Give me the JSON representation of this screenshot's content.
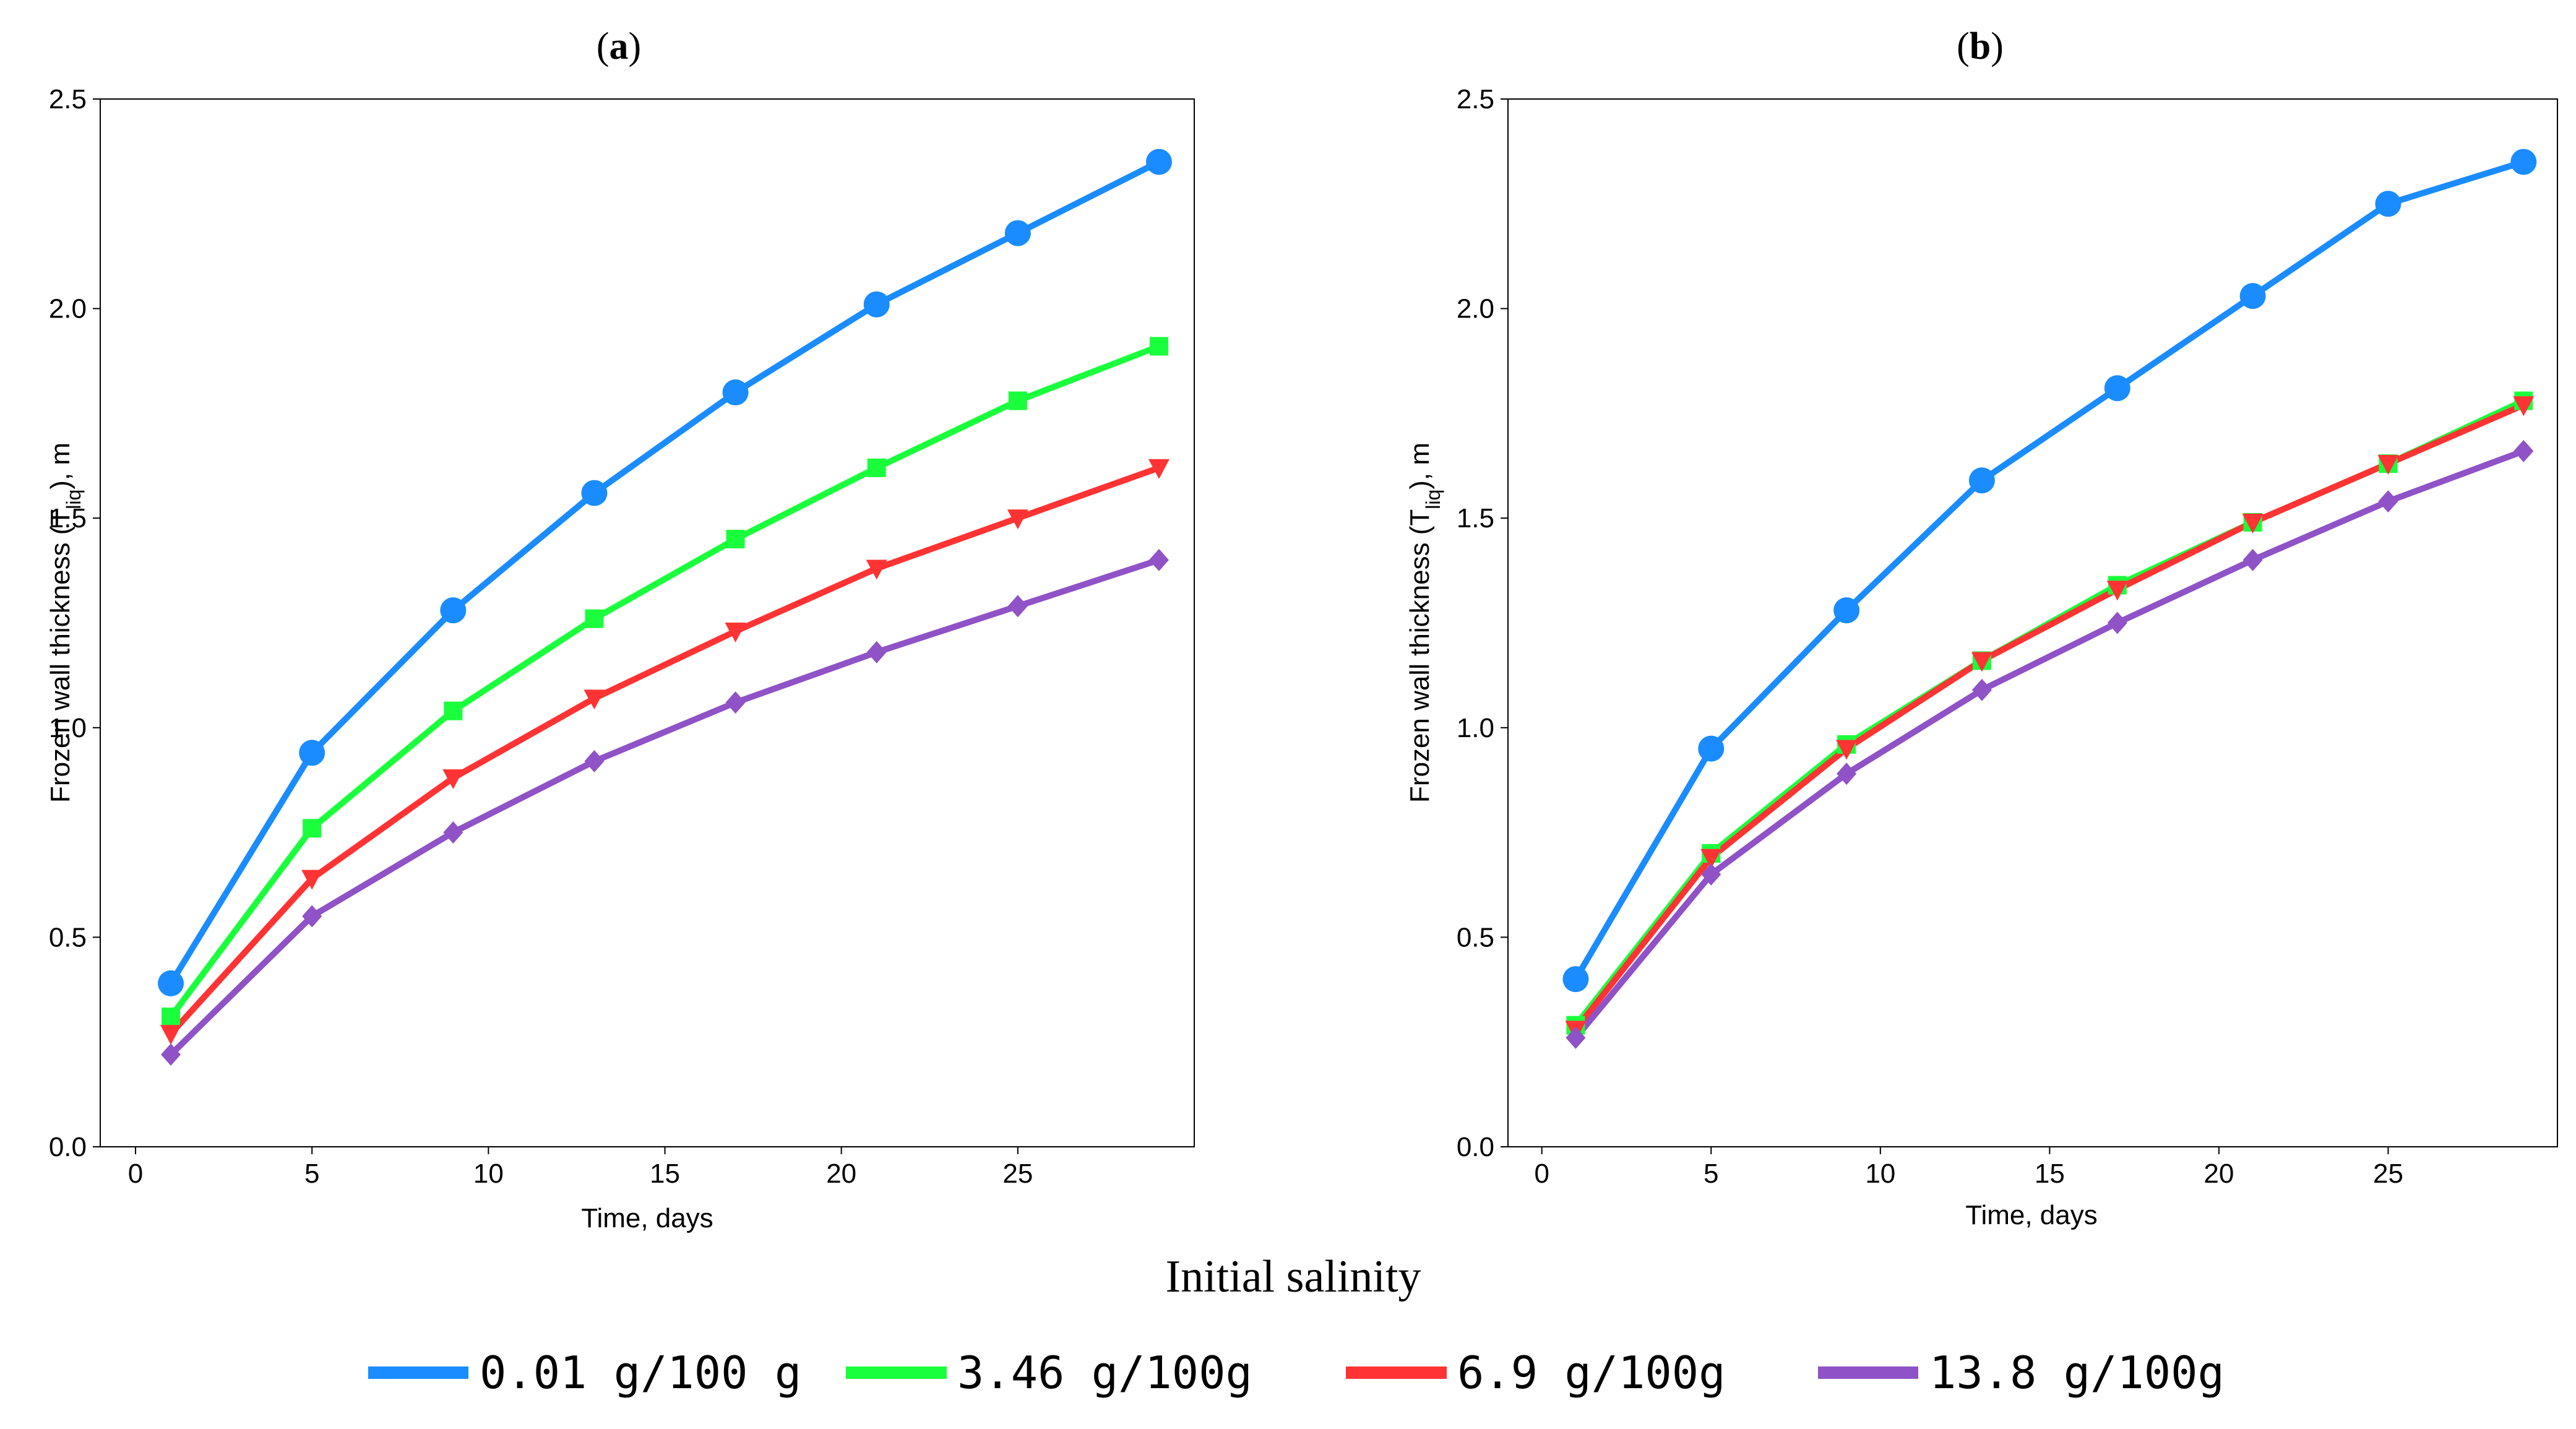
{
  "chart_data": [
    {
      "type": "line",
      "panel": "a",
      "xlabel": "Time, days",
      "ylabel": "Frozen wall thickness (T",
      "ylabel_sub": "liq",
      "ylabel_tail": "), m",
      "xlim": [
        -1,
        30
      ],
      "ylim": [
        0,
        2.5
      ],
      "xticks": [
        0,
        5,
        10,
        15,
        20,
        25
      ],
      "yticks": [
        0.0,
        0.5,
        1.0,
        1.5,
        2.0,
        2.5
      ],
      "x": [
        1,
        5,
        9,
        13,
        17,
        21,
        25,
        29
      ],
      "series": [
        {
          "name": "0.01 g/100 g",
          "color": "#1a8cff",
          "marker": "circle",
          "values": [
            0.39,
            0.94,
            1.28,
            1.56,
            1.8,
            2.01,
            2.18,
            2.35
          ]
        },
        {
          "name": "3.46 g/100g",
          "color": "#1aff3c",
          "marker": "square",
          "values": [
            0.31,
            0.76,
            1.04,
            1.26,
            1.45,
            1.62,
            1.78,
            1.91
          ]
        },
        {
          "name": "6.9 g/100g",
          "color": "#ff3333",
          "marker": "triangle-down",
          "values": [
            0.27,
            0.64,
            0.88,
            1.07,
            1.23,
            1.38,
            1.5,
            1.62
          ]
        },
        {
          "name": "13.8 g/100g",
          "color": "#8f52c7",
          "marker": "diamond",
          "values": [
            0.22,
            0.55,
            0.75,
            0.92,
            1.06,
            1.18,
            1.29,
            1.4
          ]
        }
      ]
    },
    {
      "type": "line",
      "panel": "b",
      "xlabel": "Time, days",
      "ylabel": "Frozen wall thickness (T",
      "ylabel_sub": "liq",
      "ylabel_tail": "), m",
      "xlim": [
        -1,
        30
      ],
      "ylim": [
        0,
        2.5
      ],
      "xticks": [
        0,
        5,
        10,
        15,
        20,
        25
      ],
      "yticks": [
        0.0,
        0.5,
        1.0,
        1.5,
        2.0,
        2.5
      ],
      "x": [
        1,
        5,
        9,
        13,
        17,
        21,
        25,
        29
      ],
      "series": [
        {
          "name": "0.01 g/100 g",
          "color": "#1a8cff",
          "marker": "circle",
          "values": [
            0.4,
            0.95,
            1.28,
            1.59,
            1.81,
            2.03,
            2.25,
            2.35
          ]
        },
        {
          "name": "3.46 g/100g",
          "color": "#1aff3c",
          "marker": "square",
          "values": [
            0.29,
            0.7,
            0.96,
            1.16,
            1.34,
            1.49,
            1.63,
            1.78
          ]
        },
        {
          "name": "6.9 g/100g",
          "color": "#ff3333",
          "marker": "triangle-down",
          "values": [
            0.28,
            0.69,
            0.95,
            1.16,
            1.33,
            1.49,
            1.63,
            1.77
          ]
        },
        {
          "name": "13.8 g/100g",
          "color": "#8f52c7",
          "marker": "diamond",
          "values": [
            0.26,
            0.65,
            0.89,
            1.09,
            1.25,
            1.4,
            1.54,
            1.66
          ]
        }
      ]
    }
  ],
  "legend": {
    "title": "Initial salinity",
    "items": [
      {
        "label": "0.01 g/100 g",
        "color": "#1a8cff"
      },
      {
        "label": "3.46 g/100g",
        "color": "#1aff3c"
      },
      {
        "label": "6.9 g/100g",
        "color": "#ff3333"
      },
      {
        "label": "13.8 g/100g",
        "color": "#8f52c7"
      }
    ]
  }
}
